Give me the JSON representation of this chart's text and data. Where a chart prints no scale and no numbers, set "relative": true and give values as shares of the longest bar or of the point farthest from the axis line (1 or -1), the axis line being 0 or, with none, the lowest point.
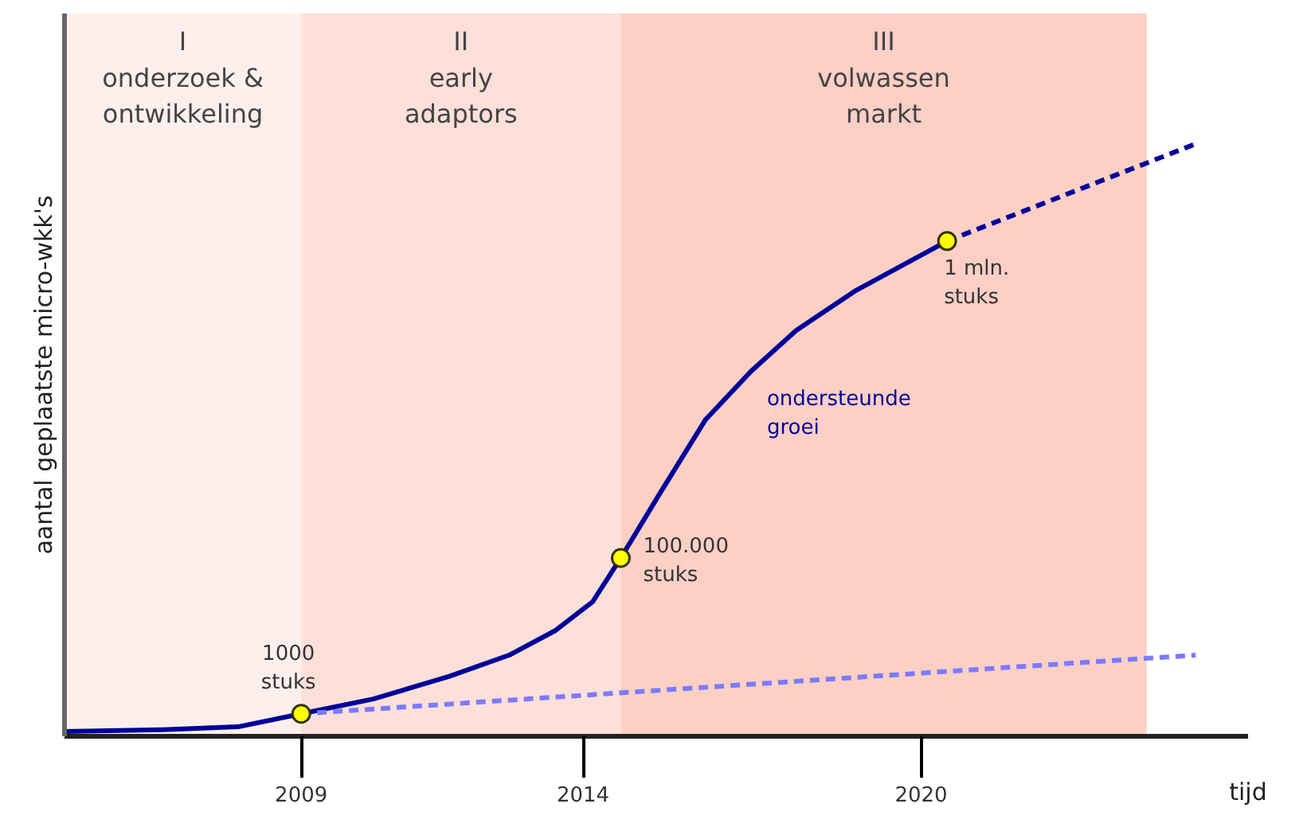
{
  "chart_data": {
    "type": "line",
    "relative": true,
    "xlabel": "tijd",
    "ylabel": "aantal geplaatste micro-wkk's",
    "xlim": [
      2004.8,
      2025.8
    ],
    "xticks": [
      2009,
      2014,
      2020
    ],
    "tick_labels": "x",
    "series": [
      {
        "name": "ondersteunde\ngroei",
        "color": "#000099",
        "line_style": "solid",
        "x": [
          2004.8,
          2006.54,
          2007.88,
          2009,
          2010.28,
          2011.62,
          2012.69,
          2013.5,
          2014.17,
          2014.67,
          2015.37,
          2016.17,
          2016.98,
          2017.78,
          2018.85,
          2019.92,
          2020.46
        ],
        "values": [
          0.008,
          0.011,
          0.016,
          0.038,
          0.063,
          0.101,
          0.137,
          0.178,
          0.227,
          0.301,
          0.411,
          0.534,
          0.616,
          0.685,
          0.753,
          0.808,
          0.836
        ]
      },
      {
        "color": "#000099",
        "line_style": "dashed",
        "x": [
          2020.46,
          2024.87
        ],
        "values": [
          0.836,
          1.0
        ]
      },
      {
        "color": "#7b7bff",
        "line_style": "dashed",
        "x": [
          2009,
          2024.87
        ],
        "values": [
          0.038,
          0.137
        ]
      },
      {
        "type": "scatter",
        "marker": "circle",
        "color": "#ffff00",
        "x": [
          2009,
          2014.67,
          2020.46
        ],
        "values": [
          0.038,
          0.301,
          0.836
        ]
      }
    ],
    "bands": [
      {
        "axis": "x",
        "from": 2004.8,
        "to": 2009,
        "label": "I\nonderzoek &\nontwikkeling",
        "color": "#fdf0ec"
      },
      {
        "axis": "x",
        "from": 2009,
        "to": 2014.67,
        "label": "II\nearly\nadaptors",
        "color": "#fde0d9"
      },
      {
        "axis": "x",
        "from": 2014.67,
        "to": 2024.0,
        "label": "III\nvolwassen\nmarkt",
        "color": "#fdd0c6"
      }
    ],
    "annotations": [
      {
        "text": "1000\nstuks",
        "x": 2009,
        "y": 0.038
      },
      {
        "text": "100.000\nstuks",
        "x": 2014.67,
        "y": 0.301
      },
      {
        "text": "1 mln.\nstuks",
        "x": 2020.46,
        "y": 0.836
      }
    ]
  }
}
